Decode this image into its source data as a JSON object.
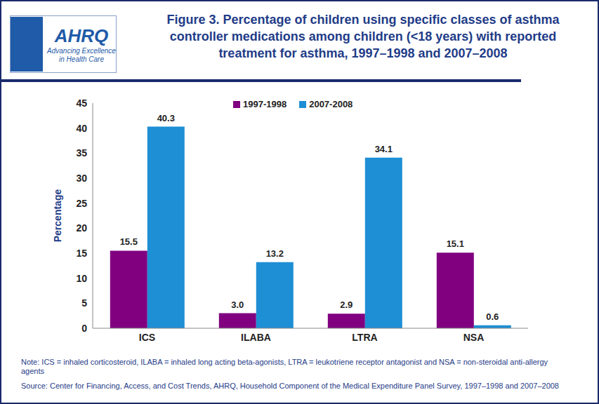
{
  "chart_data": {
    "type": "bar",
    "title": "Figure 3. Percentage of children using specific classes of asthma controller medications among children (<18 years) with reported treatment for asthma, 1997–1998 and 2007–2008",
    "y_label": "Percentage",
    "categories": [
      "ICS",
      "ILABA",
      "LTRA",
      "NSA"
    ],
    "series": [
      {
        "name": "1997-1998",
        "color": "#800080",
        "values": [
          15.5,
          3.0,
          2.9,
          15.1
        ],
        "value_labels": [
          "15.5",
          "3.0",
          "2.9",
          "15.1"
        ]
      },
      {
        "name": "2007-2008",
        "color": "#1E8FD5",
        "values": [
          40.3,
          13.2,
          34.1,
          0.6
        ],
        "value_labels": [
          "40.3",
          "13.2",
          "34.1",
          "0.6"
        ]
      }
    ],
    "ylim": [
      0,
      45
    ],
    "yticks": [
      0,
      5,
      10,
      15,
      20,
      25,
      30,
      35,
      40,
      45
    ],
    "grid": false,
    "legend": "top",
    "data_labels": true,
    "logo_text": [
      "AHRQ",
      "Advancing Excellence in Health Care"
    ],
    "note": "Note: ICS = inhaled corticosteroid, ILABA = inhaled long acting beta-agonists, LTRA = leukotriene receptor antagonist and NSA = non-steroidal anti-allergy agents",
    "source": "Source: Center for Financing, Access, and Cost Trends, AHRQ, Household Component of the Medical Expenditure Panel Survey, 1997–1998 and 2007–2008"
  }
}
